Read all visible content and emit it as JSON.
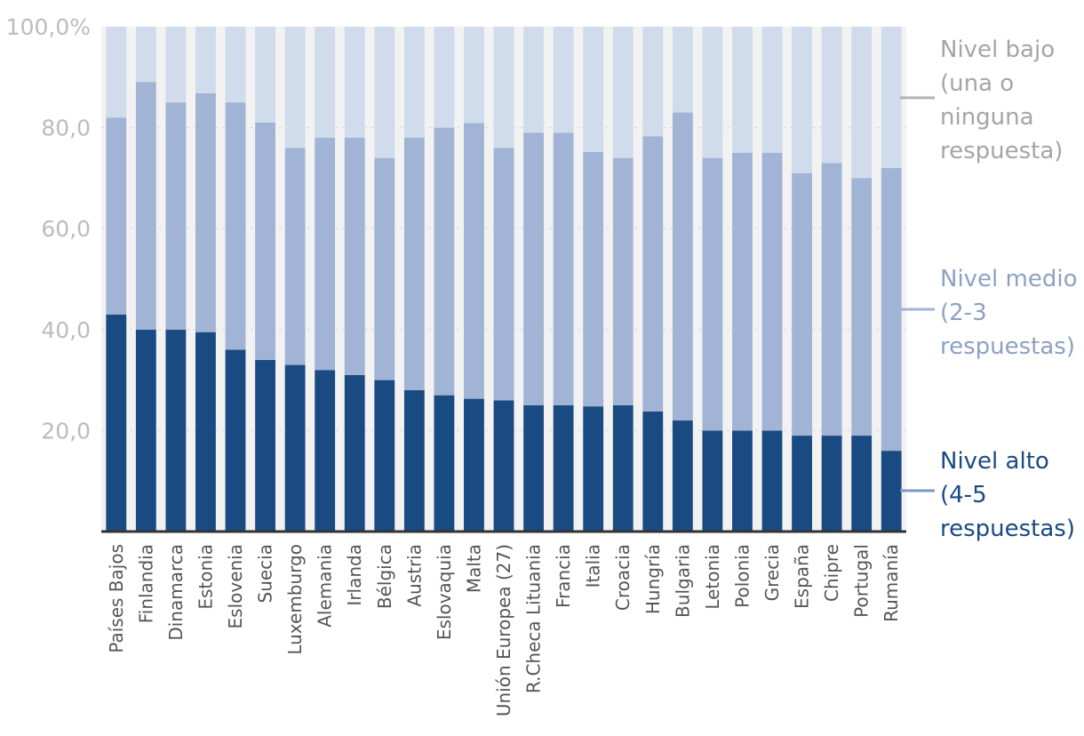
{
  "chart_data": {
    "type": "bar",
    "stacked": true,
    "categories": [
      "Países Bajos",
      "Finlandia",
      "Dinamarca",
      "Estonia",
      "Eslovenia",
      "Suecia",
      "Luxemburgo",
      "Alemania",
      "Irlanda",
      "Bélgica",
      "Austria",
      "Eslovaquia",
      "Malta",
      "Unión Europea (27)",
      "R.Checa Lituania",
      "Francia",
      "Italia",
      "Croacia",
      "Hungría",
      "Bulgaria",
      "Letonia",
      "Polonia",
      "Grecia",
      "España",
      "Chipre",
      "Portugal",
      "Rumanía"
    ],
    "series": [
      {
        "name": "Nivel alto (4-5 respuestas)",
        "legend_lines": [
          "Nivel alto",
          "(4-5",
          "respuestas)"
        ],
        "color": "#1a4a82",
        "values": [
          43,
          40,
          40,
          39.5,
          36,
          34,
          33,
          32,
          31,
          30,
          28,
          27,
          26.3,
          26,
          25,
          25,
          24.8,
          25,
          23.8,
          22,
          20,
          20,
          20,
          19,
          19,
          19,
          16
        ]
      },
      {
        "name": "Nivel medio (2-3 respuestas)",
        "legend_lines": [
          "Nivel medio",
          "(2-3",
          "respuestas)"
        ],
        "color": "#a1b4d5",
        "values": [
          39,
          49,
          45,
          47.3,
          49,
          47,
          43,
          46,
          47,
          44,
          50,
          53,
          54.6,
          50,
          54,
          54,
          50.4,
          49,
          54.5,
          61,
          54,
          55,
          55,
          52,
          54,
          51,
          56
        ]
      },
      {
        "name": "Nivel bajo (una o ninguna respuesta)",
        "legend_lines": [
          "Nivel bajo",
          "(una o",
          "ninguna",
          "respuesta)"
        ],
        "color": "#d0dbeb",
        "values": [
          18,
          11,
          15,
          13.2,
          15,
          19,
          24,
          22,
          22,
          26,
          22,
          20,
          19.1,
          24,
          21,
          21,
          24.8,
          26,
          21.7,
          17,
          26,
          25,
          25,
          29,
          27,
          30,
          28
        ]
      }
    ],
    "y_ticks": [
      "100,0%",
      "80,0",
      "60,0",
      "40,0",
      "20,0"
    ],
    "ylim": [
      0,
      100
    ],
    "grid": true,
    "legend_position": "right",
    "colors": {
      "background_column": "#f2f2f2",
      "axis": "#333333",
      "tick_text": "#bcbcbc",
      "label_text": "#555555"
    }
  }
}
